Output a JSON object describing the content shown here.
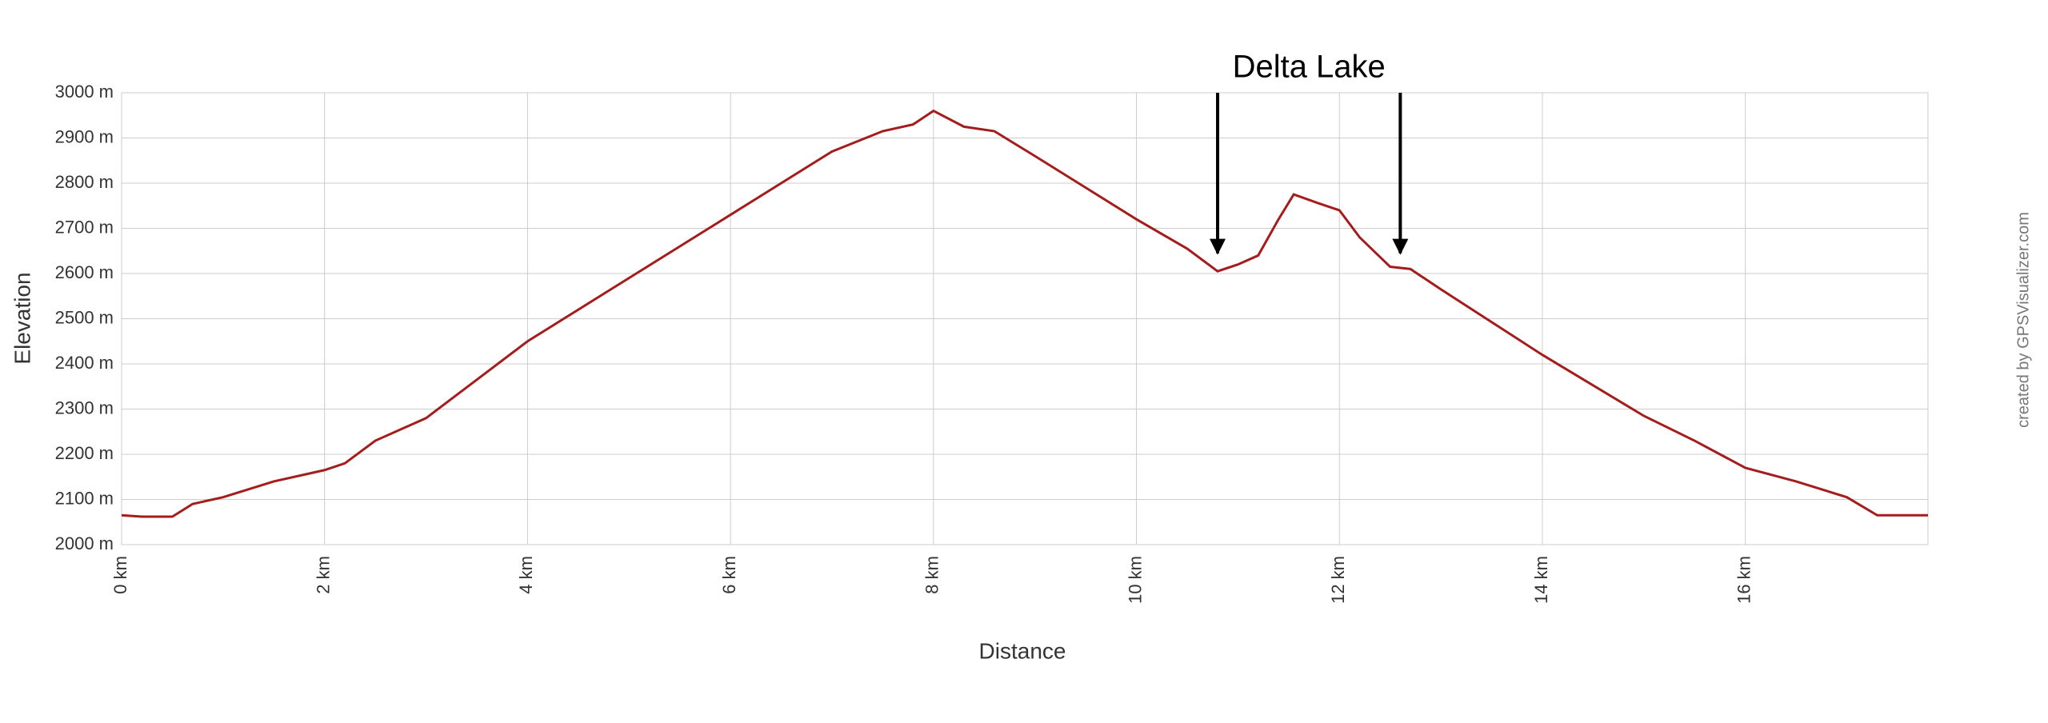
{
  "chart_data": {
    "type": "line",
    "x_label": "Distance",
    "y_label": "Elevation",
    "annotation": {
      "text": "Delta Lake",
      "x": [
        10.8,
        12.6
      ],
      "y": 2645
    },
    "credit": "created by GPSVisualizer.com",
    "xlim": [
      0,
      17.8
    ],
    "ylim": [
      2000,
      3000
    ],
    "xticks": [
      {
        "value": 0,
        "label": "0 km"
      },
      {
        "value": 2,
        "label": "2 km"
      },
      {
        "value": 4,
        "label": "4 km"
      },
      {
        "value": 6,
        "label": "6 km"
      },
      {
        "value": 8,
        "label": "8 km"
      },
      {
        "value": 10,
        "label": "10 km"
      },
      {
        "value": 12,
        "label": "12 km"
      },
      {
        "value": 14,
        "label": "14 km"
      },
      {
        "value": 16,
        "label": "16 km"
      }
    ],
    "yticks": [
      {
        "value": 2000,
        "label": "2000 m"
      },
      {
        "value": 2100,
        "label": "2100 m"
      },
      {
        "value": 2200,
        "label": "2200 m"
      },
      {
        "value": 2300,
        "label": "2300 m"
      },
      {
        "value": 2400,
        "label": "2400 m"
      },
      {
        "value": 2500,
        "label": "2500 m"
      },
      {
        "value": 2600,
        "label": "2600 m"
      },
      {
        "value": 2700,
        "label": "2700 m"
      },
      {
        "value": 2800,
        "label": "2800 m"
      },
      {
        "value": 2900,
        "label": "2900 m"
      },
      {
        "value": 3000,
        "label": "3000 m"
      }
    ],
    "grid": true,
    "series": [
      {
        "color": "#a51c1c",
        "x": [
          0,
          0.2,
          0.5,
          0.7,
          1.0,
          1.5,
          2.0,
          2.2,
          2.5,
          3,
          4,
          5,
          6,
          7,
          7.5,
          7.8,
          8.0,
          8.3,
          8.6,
          9,
          9.5,
          10,
          10.5,
          10.8,
          11,
          11.2,
          11.4,
          11.55,
          11.8,
          12.0,
          12.2,
          12.5,
          12.7,
          13,
          14,
          15,
          15.5,
          16,
          16.5,
          17,
          17.3,
          17.8
        ],
        "values": [
          2065,
          2062,
          2062,
          2090,
          2105,
          2140,
          2165,
          2180,
          2230,
          2280,
          2450,
          2590,
          2730,
          2870,
          2915,
          2930,
          2960,
          2925,
          2915,
          2860,
          2790,
          2720,
          2655,
          2605,
          2620,
          2640,
          2720,
          2775,
          2755,
          2740,
          2680,
          2615,
          2610,
          2565,
          2420,
          2285,
          2230,
          2170,
          2140,
          2105,
          2065,
          2065
        ]
      }
    ]
  }
}
